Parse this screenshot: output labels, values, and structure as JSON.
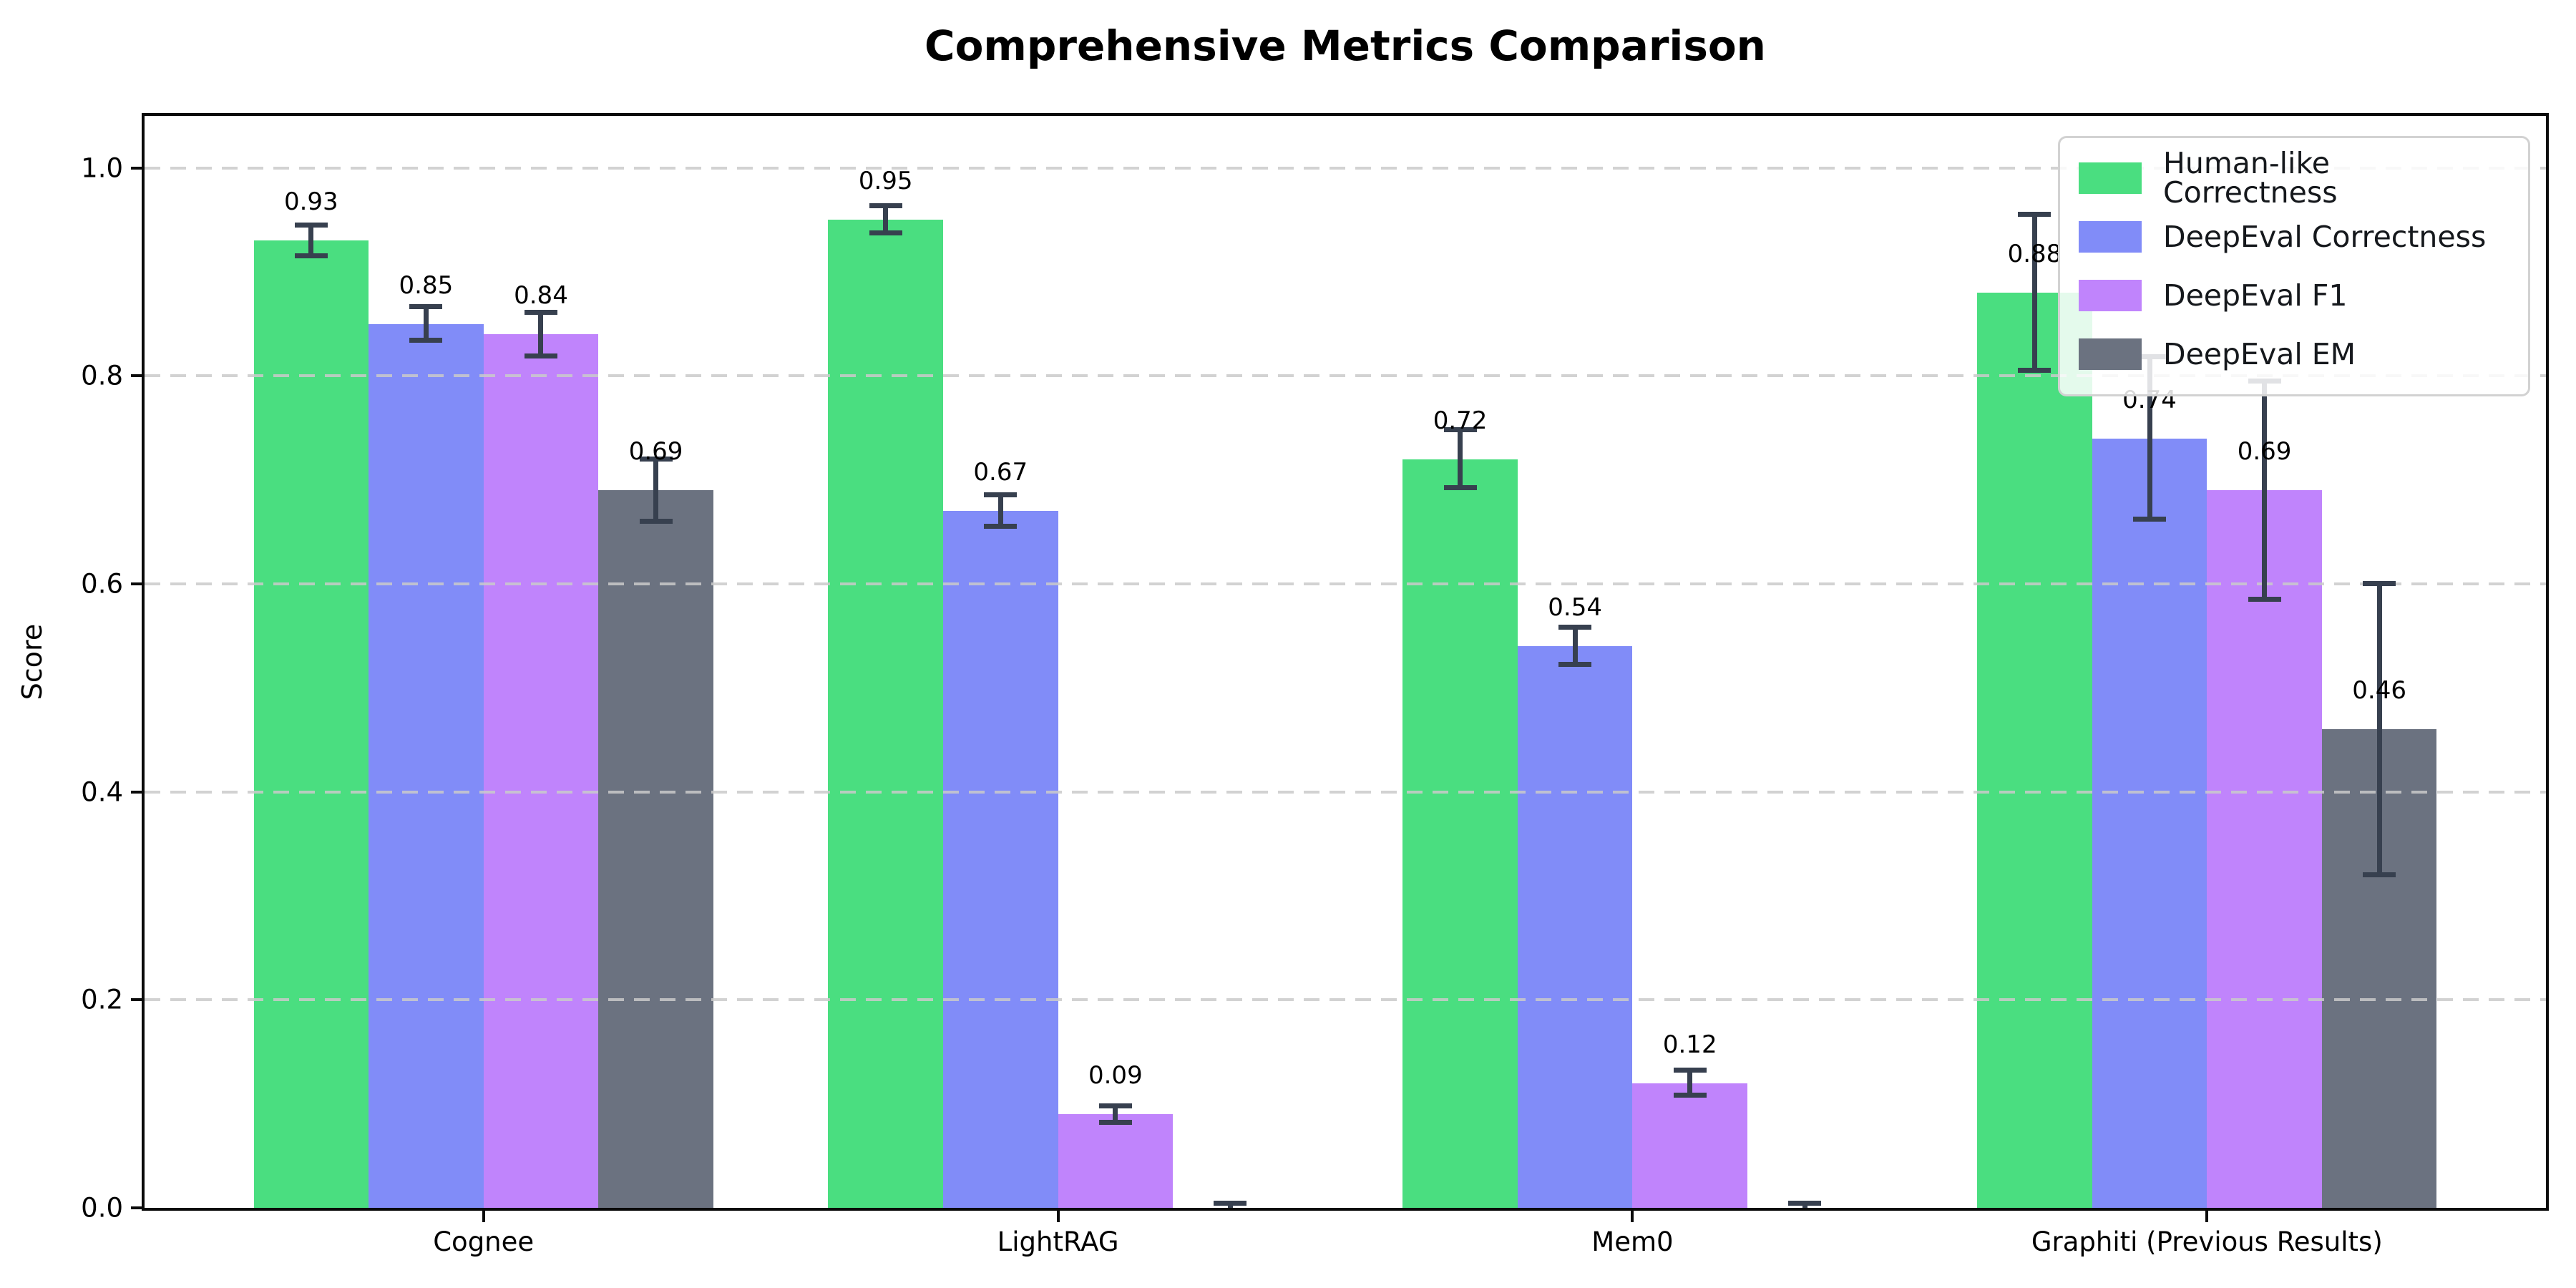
{
  "chart_data": {
    "type": "bar",
    "title": "Comprehensive Metrics Comparison",
    "ylabel": "Score",
    "xlabel": "",
    "categories": [
      "Cognee",
      "LightRAG",
      "Mem0",
      "Graphiti (Previous Results)"
    ],
    "series": [
      {
        "name": "Human-like Correctness",
        "color": "#4ade80",
        "values": [
          0.93,
          0.95,
          0.72,
          0.88
        ],
        "errors": [
          0.015,
          0.013,
          0.028,
          0.075
        ],
        "labels": [
          "0.93",
          "0.95",
          "0.72",
          "0.88"
        ]
      },
      {
        "name": "DeepEval Correctness",
        "color": "#818cf8",
        "values": [
          0.85,
          0.67,
          0.54,
          0.74
        ],
        "errors": [
          0.016,
          0.015,
          0.018,
          0.078
        ],
        "labels": [
          "0.85",
          "0.67",
          "0.54",
          "0.74"
        ]
      },
      {
        "name": "DeepEval F1",
        "color": "#c084fc",
        "values": [
          0.84,
          0.09,
          0.12,
          0.69
        ],
        "errors": [
          0.021,
          0.008,
          0.012,
          0.105
        ],
        "labels": [
          "0.84",
          "0.09",
          "0.12",
          "0.69"
        ]
      },
      {
        "name": "DeepEval EM",
        "color": "#6b7280",
        "values": [
          0.69,
          0.0,
          0.0,
          0.46
        ],
        "errors": [
          0.03,
          0.004,
          0.004,
          0.14
        ],
        "labels": [
          "0.69",
          null,
          null,
          "0.46"
        ]
      }
    ],
    "yticks": [
      "0.0",
      "0.2",
      "0.4",
      "0.6",
      "0.8",
      "1.0"
    ],
    "ylim": [
      0,
      1.05
    ],
    "grid": "horizontal dashed, drawn over bars",
    "legend_position": "upper right",
    "colors": {
      "error_bar": "#37404f",
      "grid": "#cacaca",
      "spine": "#0a0a0a",
      "background": "#ffffff"
    }
  }
}
